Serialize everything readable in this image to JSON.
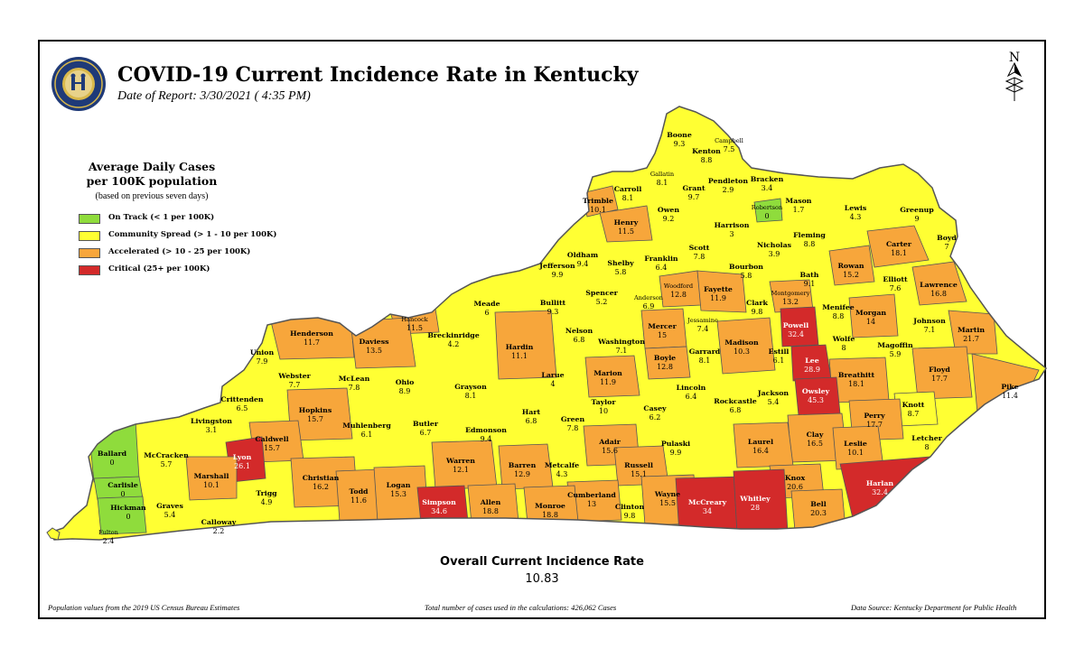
{
  "header": {
    "title": "COVID-19 Current Incidence Rate in Kentucky",
    "date_of_report": "Date of Report: 3/30/2021 ( 4:35 PM)"
  },
  "legend": {
    "title_line1": "Average Daily Cases",
    "title_line2": "per 100K population",
    "note": "(based on previous seven days)",
    "items": [
      {
        "label": "On Track (< 1 per 100K)",
        "color": "#8fdc3c"
      },
      {
        "label": "Community Spread (> 1 - 10 per 100K)",
        "color": "#ffff33"
      },
      {
        "label": "Accelerated (> 10 - 25 per 100K)",
        "color": "#f7a63b"
      },
      {
        "label": "Critical (25+ per 100K)",
        "color": "#d32a2a"
      }
    ]
  },
  "colors": {
    "on_track": "#8fdc3c",
    "community_spread": "#ffff33",
    "accelerated": "#f7a63b",
    "critical": "#d32a2a",
    "border": "#555555"
  },
  "counties": [
    {
      "name": "Boone",
      "value": "9.3",
      "category": "community_spread"
    },
    {
      "name": "Campbell",
      "value": "7.5",
      "category": "community_spread"
    },
    {
      "name": "Kenton",
      "value": "8.8",
      "category": "community_spread"
    },
    {
      "name": "Gallatin",
      "value": "8.1",
      "category": "community_spread"
    },
    {
      "name": "Carroll",
      "value": "8.1",
      "category": "community_spread"
    },
    {
      "name": "Grant",
      "value": "9.7",
      "category": "community_spread"
    },
    {
      "name": "Pendleton",
      "value": "2.9",
      "category": "community_spread"
    },
    {
      "name": "Bracken",
      "value": "3.4",
      "category": "community_spread"
    },
    {
      "name": "Trimble",
      "value": "10.1",
      "category": "accelerated"
    },
    {
      "name": "Owen",
      "value": "9.2",
      "category": "community_spread"
    },
    {
      "name": "Mason",
      "value": "1.7",
      "category": "community_spread"
    },
    {
      "name": "Robertson",
      "value": "0",
      "category": "on_track"
    },
    {
      "name": "Lewis",
      "value": "4.3",
      "category": "community_spread"
    },
    {
      "name": "Greenup",
      "value": "9",
      "category": "community_spread"
    },
    {
      "name": "Henry",
      "value": "11.5",
      "category": "accelerated"
    },
    {
      "name": "Harrison",
      "value": "3",
      "category": "community_spread"
    },
    {
      "name": "Boyd",
      "value": "7",
      "category": "community_spread"
    },
    {
      "name": "Fleming",
      "value": "8.8",
      "category": "community_spread"
    },
    {
      "name": "Carter",
      "value": "18.1",
      "category": "accelerated"
    },
    {
      "name": "Oldham",
      "value": "9.4",
      "category": "community_spread"
    },
    {
      "name": "Scott",
      "value": "7.8",
      "category": "community_spread"
    },
    {
      "name": "Nicholas",
      "value": "3.9",
      "category": "community_spread"
    },
    {
      "name": "Franklin",
      "value": "6.4",
      "category": "community_spread"
    },
    {
      "name": "Rowan",
      "value": "15.2",
      "category": "accelerated"
    },
    {
      "name": "Jefferson",
      "value": "9.9",
      "category": "community_spread"
    },
    {
      "name": "Shelby",
      "value": "5.8",
      "category": "community_spread"
    },
    {
      "name": "Bourbon",
      "value": "5.8",
      "category": "community_spread"
    },
    {
      "name": "Bath",
      "value": "9.1",
      "category": "community_spread"
    },
    {
      "name": "Elliott",
      "value": "7.6",
      "category": "community_spread"
    },
    {
      "name": "Lawrence",
      "value": "16.8",
      "category": "accelerated"
    },
    {
      "name": "Woodford",
      "value": "12.8",
      "category": "accelerated"
    },
    {
      "name": "Fayette",
      "value": "11.9",
      "category": "accelerated"
    },
    {
      "name": "Meade",
      "value": "6",
      "category": "community_spread"
    },
    {
      "name": "Spencer",
      "value": "5.2",
      "category": "community_spread"
    },
    {
      "name": "Bullitt",
      "value": "9.3",
      "category": "community_spread"
    },
    {
      "name": "Anderson",
      "value": "6.9",
      "category": "community_spread"
    },
    {
      "name": "Montgomery",
      "value": "13.2",
      "category": "accelerated"
    },
    {
      "name": "Clark",
      "value": "9.8",
      "category": "community_spread"
    },
    {
      "name": "Menifee",
      "value": "8.8",
      "category": "community_spread"
    },
    {
      "name": "Morgan",
      "value": "14",
      "category": "accelerated"
    },
    {
      "name": "Hancock",
      "value": "11.5",
      "category": "accelerated"
    },
    {
      "name": "Henderson",
      "value": "11.7",
      "category": "accelerated"
    },
    {
      "name": "Daviess",
      "value": "13.5",
      "category": "accelerated"
    },
    {
      "name": "Breckinridge",
      "value": "4.2",
      "category": "community_spread"
    },
    {
      "name": "Jessamine",
      "value": "7.4",
      "category": "community_spread"
    },
    {
      "name": "Powell",
      "value": "32.4",
      "category": "critical"
    },
    {
      "name": "Johnson",
      "value": "7.1",
      "category": "community_spread"
    },
    {
      "name": "Martin",
      "value": "21.7",
      "category": "accelerated"
    },
    {
      "name": "Nelson",
      "value": "6.8",
      "category": "community_spread"
    },
    {
      "name": "Mercer",
      "value": "15",
      "category": "accelerated"
    },
    {
      "name": "Madison",
      "value": "10.3",
      "category": "accelerated"
    },
    {
      "name": "Wolfe",
      "value": "8",
      "category": "community_spread"
    },
    {
      "name": "Magoffin",
      "value": "5.9",
      "category": "community_spread"
    },
    {
      "name": "Union",
      "value": "7.9",
      "category": "community_spread"
    },
    {
      "name": "Hardin",
      "value": "11.1",
      "category": "accelerated"
    },
    {
      "name": "Washington",
      "value": "7.1",
      "category": "community_spread"
    },
    {
      "name": "Garrard",
      "value": "8.1",
      "category": "community_spread"
    },
    {
      "name": "Estill",
      "value": "6.1",
      "category": "community_spread"
    },
    {
      "name": "Lee",
      "value": "28.9",
      "category": "critical"
    },
    {
      "name": "Webster",
      "value": "7.7",
      "category": "community_spread"
    },
    {
      "name": "McLean",
      "value": "7.8",
      "category": "community_spread"
    },
    {
      "name": "Boyle",
      "value": "12.8",
      "category": "accelerated"
    },
    {
      "name": "Breathitt",
      "value": "18.1",
      "category": "accelerated"
    },
    {
      "name": "Floyd",
      "value": "17.7",
      "category": "accelerated"
    },
    {
      "name": "Ohio",
      "value": "8.9",
      "category": "community_spread"
    },
    {
      "name": "Larue",
      "value": "4",
      "category": "community_spread"
    },
    {
      "name": "Marion",
      "value": "11.9",
      "category": "accelerated"
    },
    {
      "name": "Pike",
      "value": "11.4",
      "category": "accelerated"
    },
    {
      "name": "Grayson",
      "value": "8.1",
      "category": "community_spread"
    },
    {
      "name": "Lincoln",
      "value": "6.4",
      "category": "community_spread"
    },
    {
      "name": "Crittenden",
      "value": "6.5",
      "category": "community_spread"
    },
    {
      "name": "Owsley",
      "value": "45.3",
      "category": "critical"
    },
    {
      "name": "Jackson",
      "value": "5.4",
      "category": "community_spread"
    },
    {
      "name": "Taylor",
      "value": "10",
      "category": "community_spread"
    },
    {
      "name": "Rockcastle",
      "value": "6.8",
      "category": "community_spread"
    },
    {
      "name": "Knott",
      "value": "8.7",
      "category": "community_spread"
    },
    {
      "name": "Hopkins",
      "value": "15.7",
      "category": "accelerated"
    },
    {
      "name": "Hart",
      "value": "6.8",
      "category": "community_spread"
    },
    {
      "name": "Livingston",
      "value": "3.1",
      "category": "community_spread"
    },
    {
      "name": "Green",
      "value": "7.8",
      "category": "community_spread"
    },
    {
      "name": "Casey",
      "value": "6.2",
      "category": "community_spread"
    },
    {
      "name": "Perry",
      "value": "17.7",
      "category": "accelerated"
    },
    {
      "name": "Muhlenberg",
      "value": "6.1",
      "category": "community_spread"
    },
    {
      "name": "Butler",
      "value": "6.7",
      "category": "community_spread"
    },
    {
      "name": "Caldwell",
      "value": "15.7",
      "category": "accelerated"
    },
    {
      "name": "Edmonson",
      "value": "9.4",
      "category": "community_spread"
    },
    {
      "name": "Clay",
      "value": "16.5",
      "category": "accelerated"
    },
    {
      "name": "Letcher",
      "value": "8",
      "category": "community_spread"
    },
    {
      "name": "Ballard",
      "value": "0",
      "category": "on_track"
    },
    {
      "name": "McCracken",
      "value": "5.7",
      "category": "community_spread"
    },
    {
      "name": "Lyon",
      "value": "26.1",
      "category": "critical"
    },
    {
      "name": "Adair",
      "value": "15.6",
      "category": "accelerated"
    },
    {
      "name": "Laurel",
      "value": "16.4",
      "category": "accelerated"
    },
    {
      "name": "Leslie",
      "value": "10.1",
      "category": "accelerated"
    },
    {
      "name": "Pulaski",
      "value": "9.9",
      "category": "community_spread"
    },
    {
      "name": "Warren",
      "value": "12.1",
      "category": "accelerated"
    },
    {
      "name": "Metcalfe",
      "value": "4.3",
      "category": "community_spread"
    },
    {
      "name": "Barren",
      "value": "12.9",
      "category": "accelerated"
    },
    {
      "name": "Russell",
      "value": "15.1",
      "category": "accelerated"
    },
    {
      "name": "Carlisle",
      "value": "0",
      "category": "on_track"
    },
    {
      "name": "Marshall",
      "value": "10.1",
      "category": "accelerated"
    },
    {
      "name": "Christian",
      "value": "16.2",
      "category": "accelerated"
    },
    {
      "name": "Knox",
      "value": "20.6",
      "category": "accelerated"
    },
    {
      "name": "Harlan",
      "value": "32.4",
      "category": "critical"
    },
    {
      "name": "Graves",
      "value": "5.4",
      "category": "community_spread"
    },
    {
      "name": "Trigg",
      "value": "4.9",
      "category": "community_spread"
    },
    {
      "name": "Todd",
      "value": "11.6",
      "category": "accelerated"
    },
    {
      "name": "Logan",
      "value": "15.3",
      "category": "accelerated"
    },
    {
      "name": "Cumberland",
      "value": "13",
      "category": "accelerated"
    },
    {
      "name": "Wayne",
      "value": "15.5",
      "category": "accelerated"
    },
    {
      "name": "Bell",
      "value": "20.3",
      "category": "accelerated"
    },
    {
      "name": "Hickman",
      "value": "0",
      "category": "on_track"
    },
    {
      "name": "Simpson",
      "value": "34.6",
      "category": "critical"
    },
    {
      "name": "Allen",
      "value": "18.8",
      "category": "accelerated"
    },
    {
      "name": "Monroe",
      "value": "18.8",
      "category": "accelerated"
    },
    {
      "name": "Clinton",
      "value": "9.8",
      "category": "community_spread"
    },
    {
      "name": "McCreary",
      "value": "34",
      "category": "critical"
    },
    {
      "name": "Whitley",
      "value": "28",
      "category": "critical"
    },
    {
      "name": "Calloway",
      "value": "2.2",
      "category": "community_spread"
    },
    {
      "name": "Fulton",
      "value": "2.4",
      "category": "community_spread"
    }
  ],
  "overall": {
    "label": "Overall Current Incidence Rate",
    "value": "10.83"
  },
  "footer": {
    "left": "Population values from the 2019 US Census Bureau Estimates",
    "center": "Total number of cases used in the calculations: 426,062 Cases",
    "right": "Data Source: Kentucky Department for Public Health"
  },
  "seal_text": "COMMONWEALTH OF KENTUCKY",
  "north_label": "N"
}
